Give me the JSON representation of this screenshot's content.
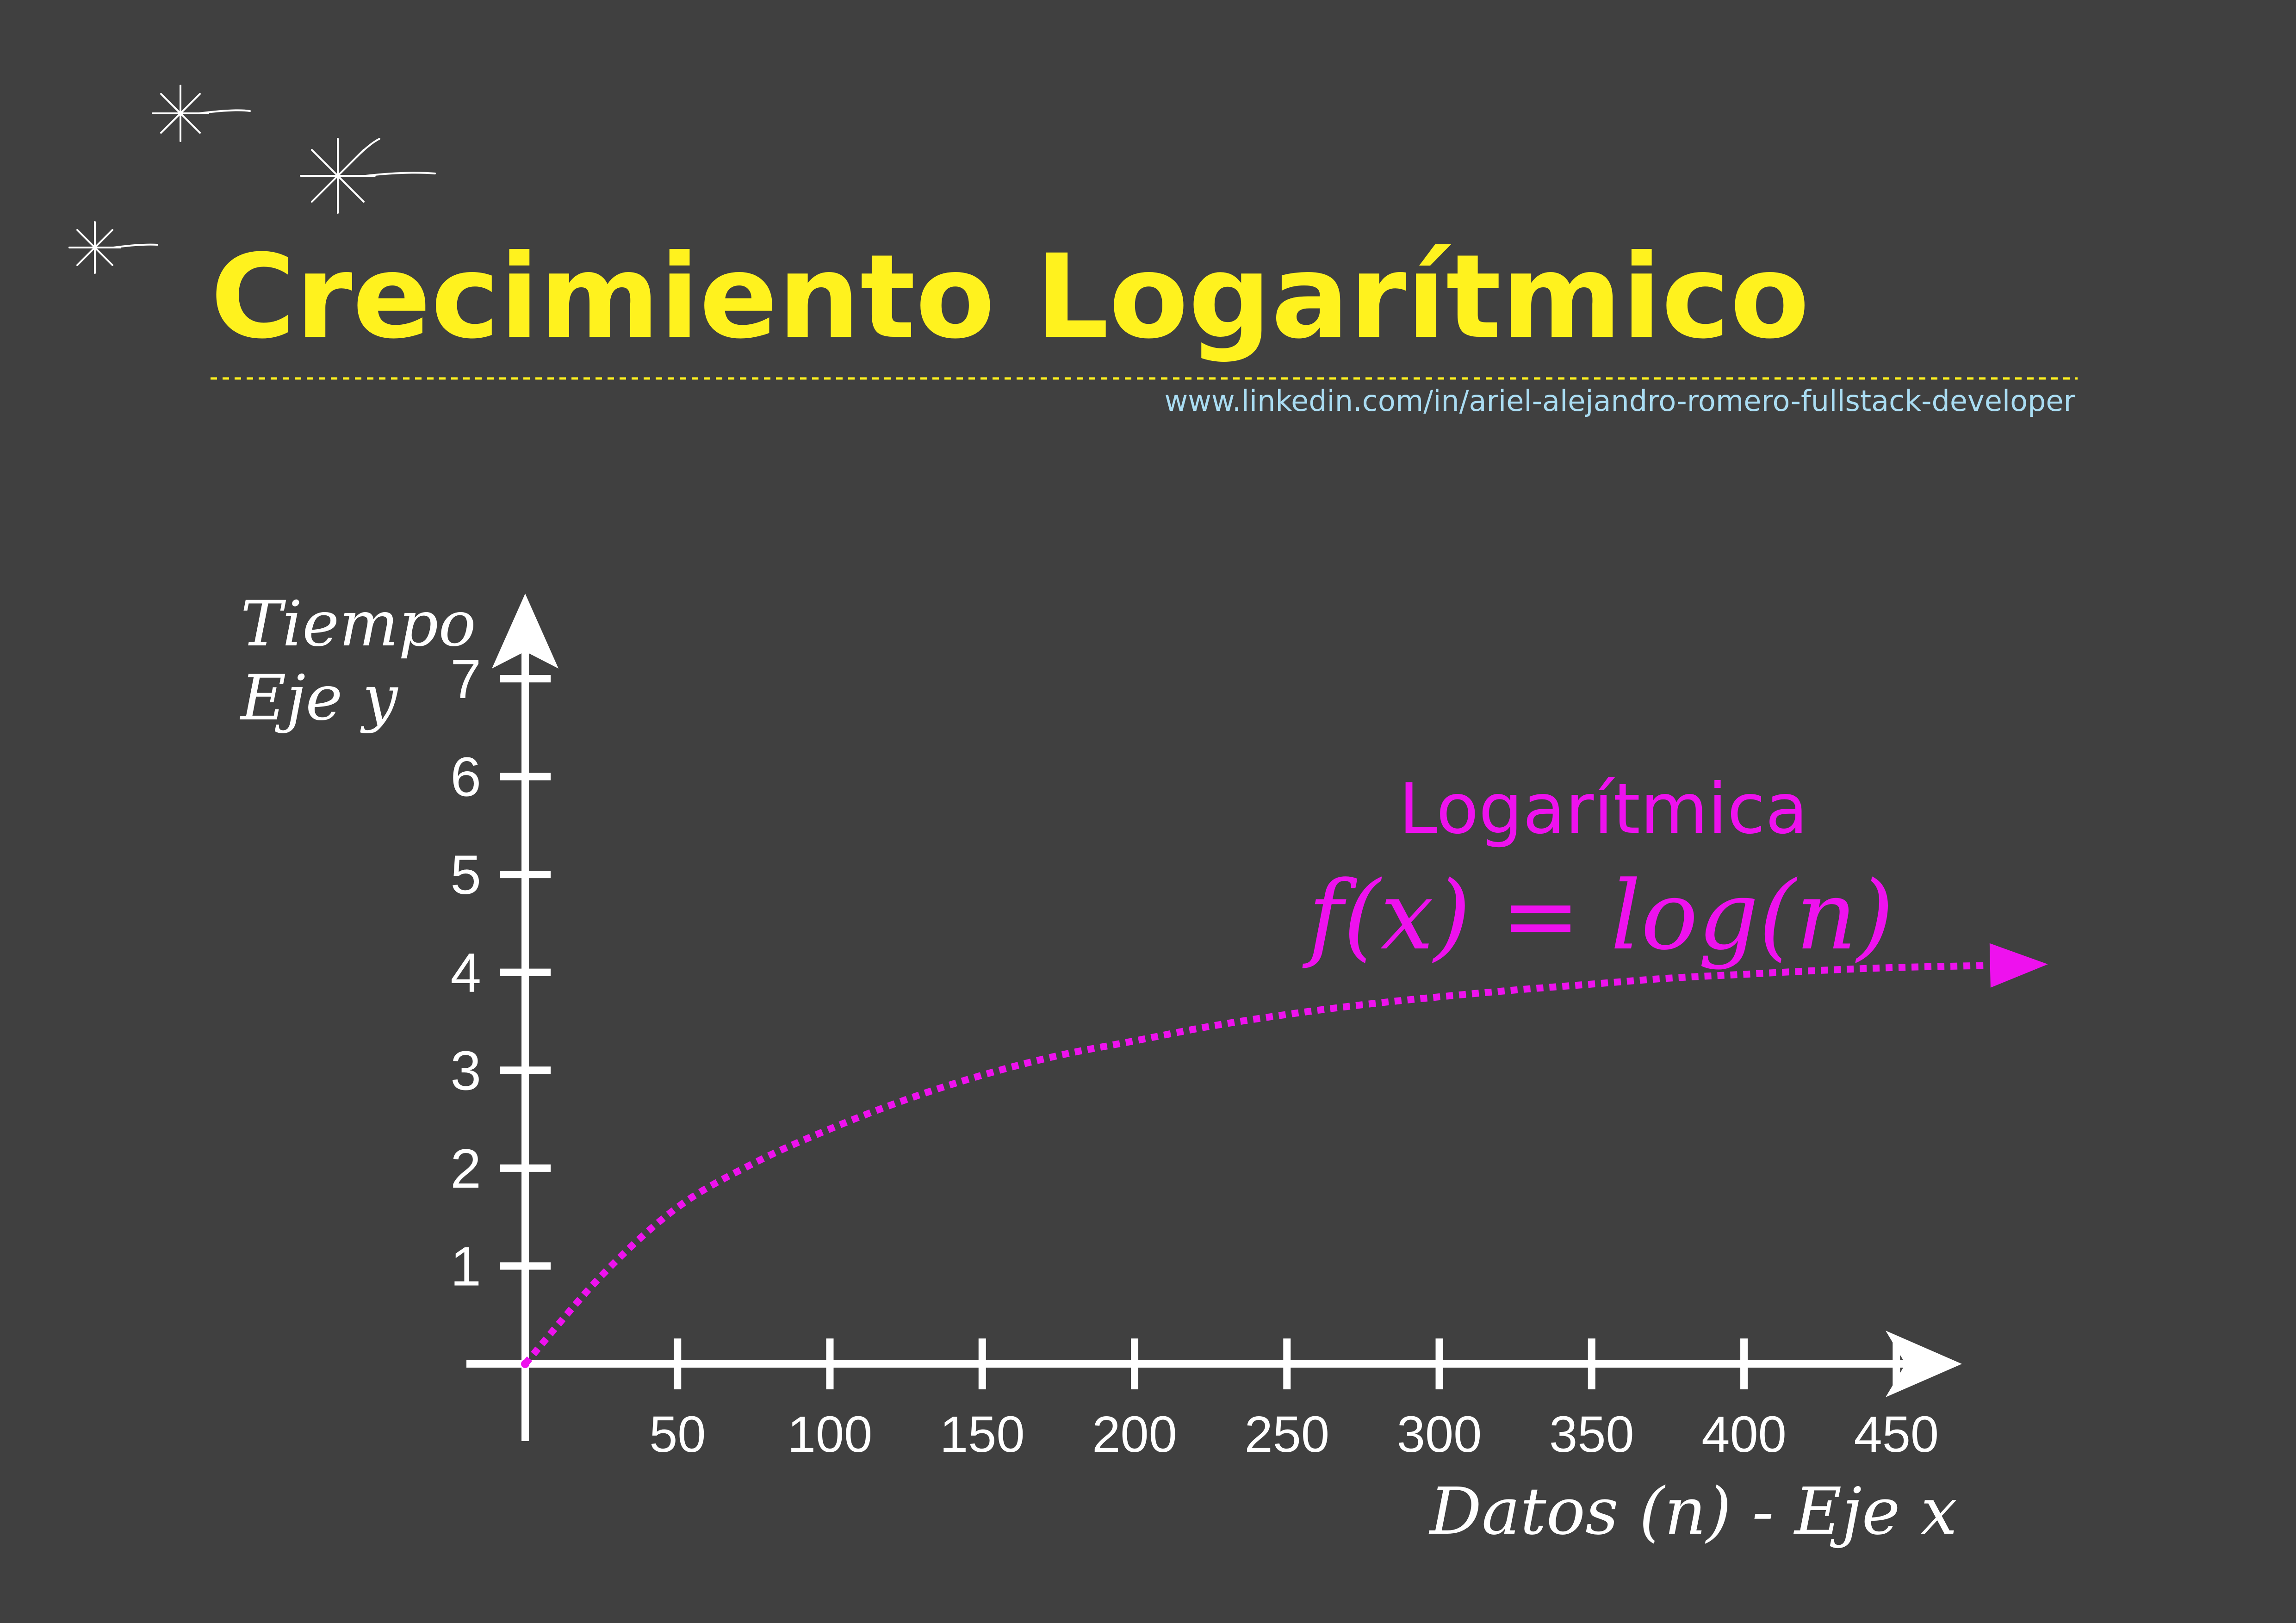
{
  "colors": {
    "background": "#404040",
    "title": "#FFF21E",
    "url": "#A9DCF2",
    "axis": "#FFFFFF",
    "series": "#EE11EE",
    "sparkle": "#FFFFFF"
  },
  "header": {
    "title": "Crecimiento Logarítmico",
    "url": "www.linkedin.com/in/ariel-alejandro-romero-fullstack-developer"
  },
  "chart_data": {
    "type": "line",
    "title": "Crecimiento Logarítmico",
    "xlabel": "Datos (n) - Eje x",
    "ylabel_lines": [
      "Tiempo",
      "Eje y"
    ],
    "xlim": [
      0,
      470
    ],
    "ylim": [
      0,
      7.6
    ],
    "x_ticks": [
      50,
      100,
      150,
      200,
      250,
      300,
      350,
      400,
      450
    ],
    "y_ticks": [
      1,
      2,
      3,
      4,
      5,
      6,
      7
    ],
    "grid": false,
    "series": [
      {
        "name": "Logarítmica",
        "formula": "f(x) = log(n)",
        "style": "dotted",
        "arrow_end": true,
        "x": [
          0,
          25,
          50,
          75,
          100,
          125,
          150,
          175,
          200,
          225,
          250,
          275,
          300,
          325,
          350,
          375,
          400,
          425,
          450,
          480
        ],
        "y": [
          0,
          0.9,
          1.6,
          2.05,
          2.4,
          2.7,
          2.95,
          3.15,
          3.3,
          3.45,
          3.57,
          3.67,
          3.75,
          3.82,
          3.88,
          3.94,
          3.98,
          4.02,
          4.05,
          4.07
        ]
      }
    ]
  },
  "decorations": {
    "sparkles": [
      "sparkle-icon",
      "sparkle-icon",
      "sparkle-icon"
    ]
  }
}
